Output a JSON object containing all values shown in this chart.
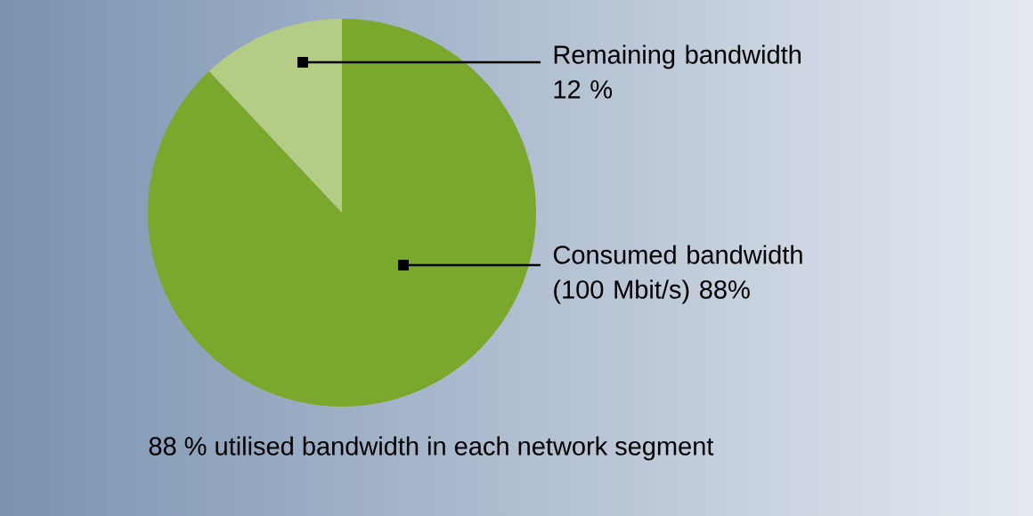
{
  "chart_data": {
    "type": "pie",
    "title": "88 % utilised bandwidth in each network segment",
    "categories": [
      "Consumed bandwidth (100 Mbit/s)",
      "Remaining bandwidth"
    ],
    "values": [
      88,
      12
    ],
    "colors": [
      "#7aa82c",
      "#b5cc85"
    ],
    "value_labels": [
      "88%",
      "12 %"
    ]
  }
}
